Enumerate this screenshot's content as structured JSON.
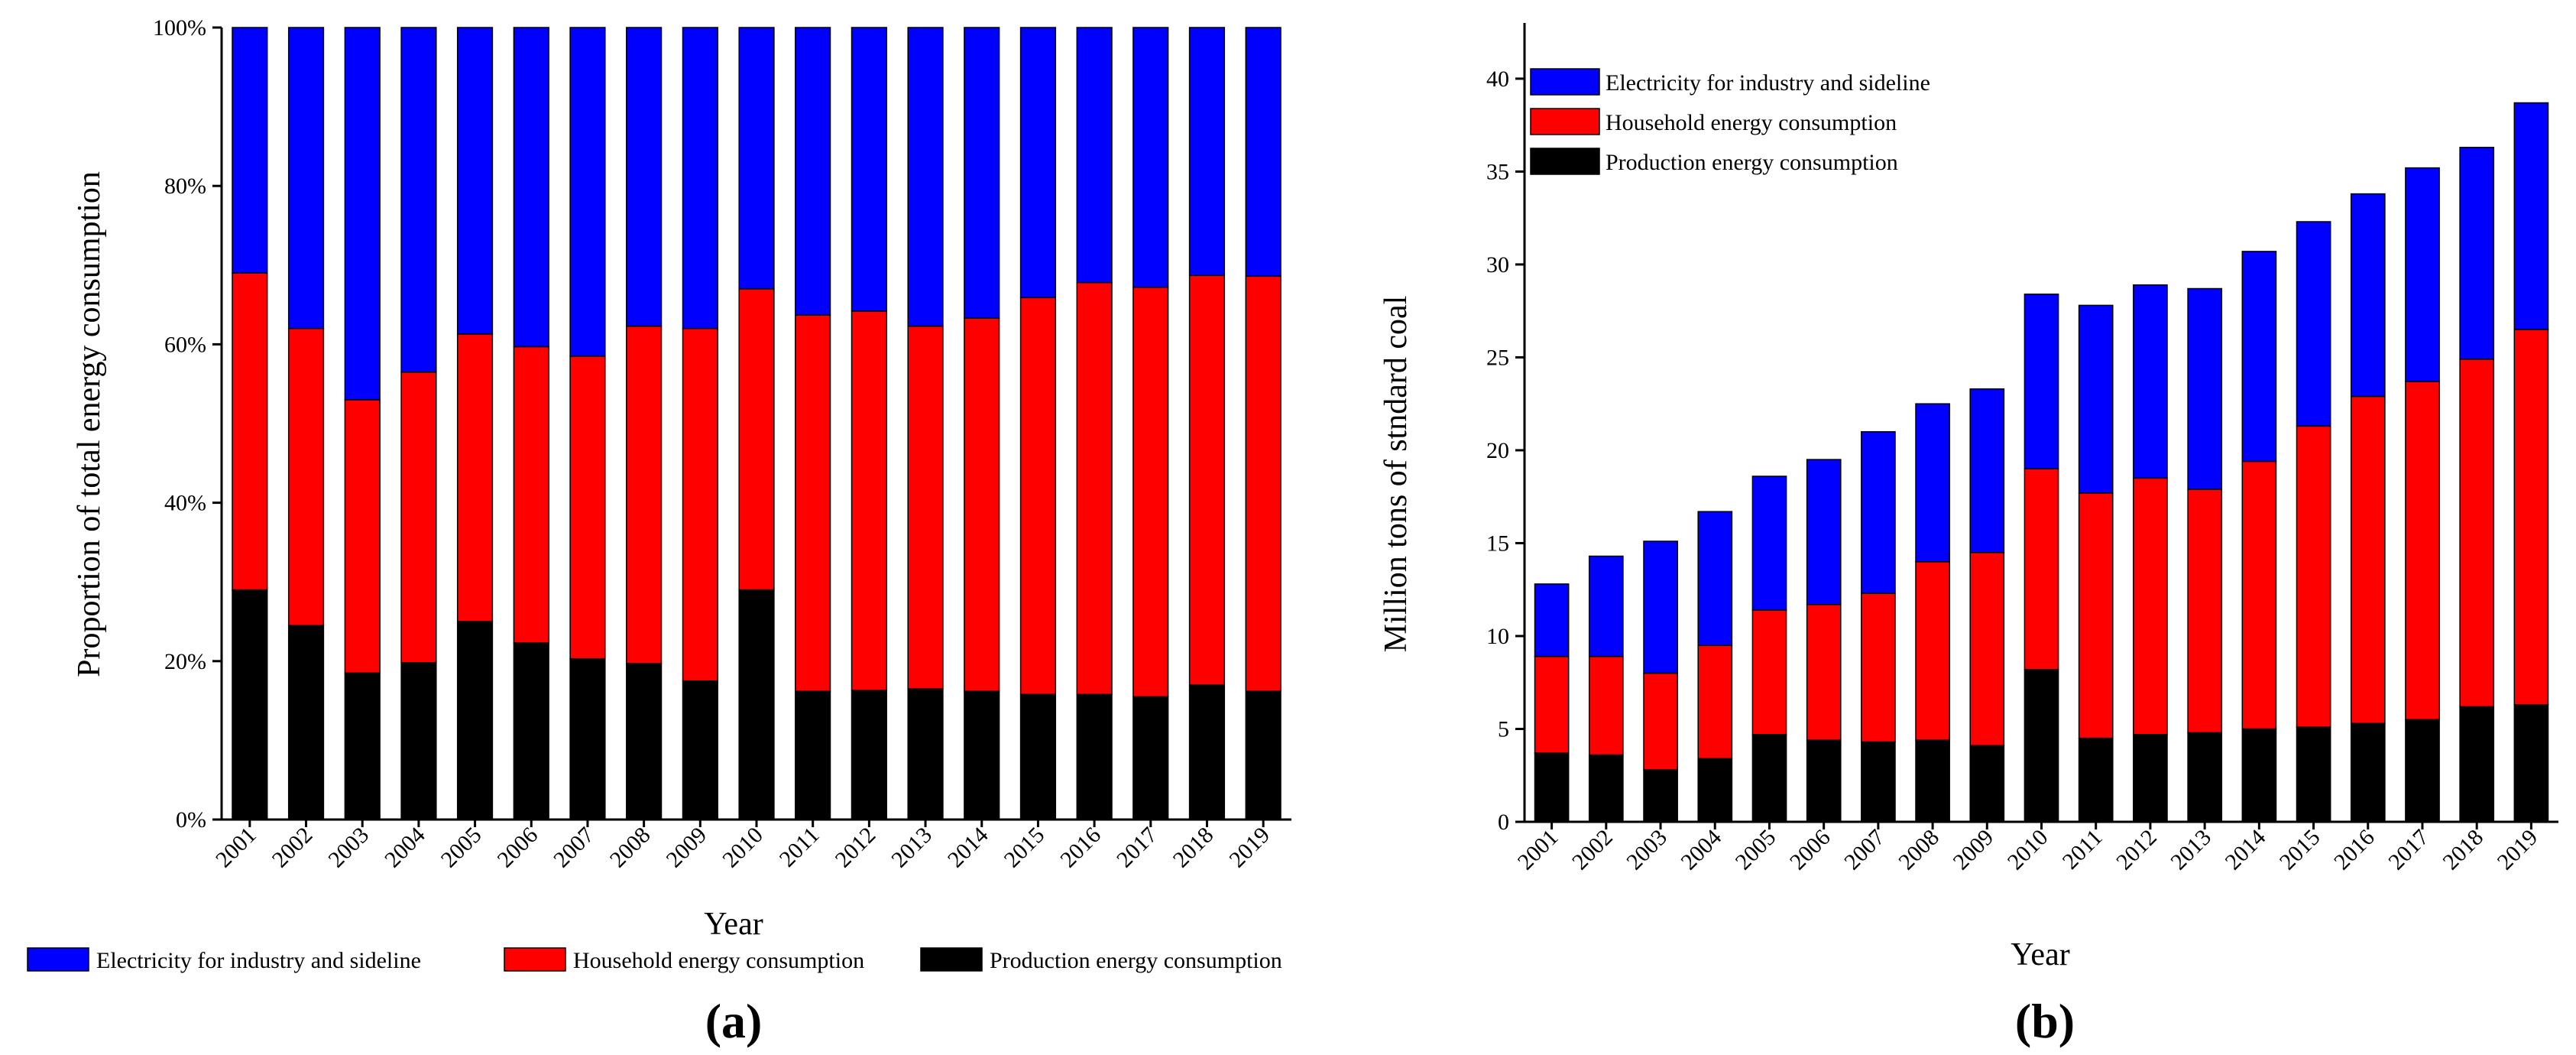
{
  "chart_data": [
    {
      "panel_label": "(a)",
      "type": "bar",
      "stacked": true,
      "normalized": true,
      "categories": [
        "2001",
        "2002",
        "2003",
        "2004",
        "2005",
        "2006",
        "2007",
        "2008",
        "2009",
        "2010",
        "2011",
        "2012",
        "2013",
        "2014",
        "2015",
        "2016",
        "2017",
        "2018",
        "2019"
      ],
      "series": [
        {
          "name": "Production energy consumption",
          "color": "#000000",
          "values": [
            29,
            24.5,
            18.5,
            19.8,
            25,
            22.3,
            20.3,
            19.7,
            17.5,
            29,
            16.2,
            16.3,
            16.5,
            16.2,
            15.8,
            15.8,
            15.5,
            17,
            16.2
          ]
        },
        {
          "name": "Household energy consumption",
          "color": "#ff0000",
          "values": [
            40,
            37.5,
            34.5,
            36.7,
            36.3,
            37.4,
            38.2,
            42.6,
            44.5,
            38,
            47.5,
            47.9,
            45.8,
            47.1,
            50.1,
            52,
            51.7,
            51.7,
            52.4
          ]
        },
        {
          "name": "Electricity for industry and sideline",
          "color": "#0000ff",
          "values": [
            31,
            38,
            47,
            43.5,
            38.7,
            40.3,
            41.5,
            37.7,
            38,
            33,
            36.3,
            35.8,
            37.7,
            36.7,
            34.1,
            32.2,
            32.8,
            31.3,
            31.4
          ]
        }
      ],
      "ylabel": "Proportion of total energy consumption",
      "xlabel": "Year",
      "ylim": [
        0,
        100
      ],
      "yticks": [
        0,
        20,
        40,
        60,
        80,
        100
      ],
      "ytick_labels": [
        "0%",
        "20%",
        "40%",
        "60%",
        "80%",
        "100%"
      ],
      "legend_position": "bottom",
      "legend_labels": [
        "Electricity for industry and sideline",
        "Household energy consumption",
        "Production energy consumption"
      ]
    },
    {
      "panel_label": "(b)",
      "type": "bar",
      "stacked": true,
      "normalized": false,
      "categories": [
        "2001",
        "2002",
        "2003",
        "2004",
        "2005",
        "2006",
        "2007",
        "2008",
        "2009",
        "2010",
        "2011",
        "2012",
        "2013",
        "2014",
        "2015",
        "2016",
        "2017",
        "2018",
        "2019"
      ],
      "series": [
        {
          "name": "Production energy consumption",
          "color": "#000000",
          "values": [
            3.7,
            3.6,
            2.8,
            3.4,
            4.7,
            4.4,
            4.3,
            4.4,
            4.1,
            8.2,
            4.5,
            4.7,
            4.8,
            5,
            5.1,
            5.3,
            5.5,
            6.2,
            6.3
          ]
        },
        {
          "name": "Household energy consumption",
          "color": "#ff0000",
          "values": [
            5.2,
            5.3,
            5.2,
            6.1,
            6.7,
            7.3,
            8,
            9.6,
            10.4,
            10.8,
            13.2,
            13.8,
            13.1,
            14.4,
            16.2,
            17.6,
            18.2,
            18.7,
            20.2
          ]
        },
        {
          "name": "Electricity for industry and sideline",
          "color": "#0000ff",
          "values": [
            3.9,
            5.4,
            7.1,
            7.2,
            7.2,
            7.8,
            8.7,
            8.5,
            8.8,
            9.4,
            10.1,
            10.4,
            10.8,
            11.3,
            11,
            10.9,
            11.5,
            11.4,
            12.2
          ]
        }
      ],
      "ylabel": "Million tons of stndard coal",
      "xlabel": "Year",
      "ylim": [
        0,
        43
      ],
      "yticks": [
        0,
        5,
        10,
        15,
        20,
        25,
        30,
        35,
        40
      ],
      "ytick_labels": [
        "0",
        "5",
        "10",
        "15",
        "20",
        "25",
        "30",
        "35",
        "40"
      ],
      "legend_position": "top-left",
      "legend_labels": [
        "Electricity for industry and sideline",
        "Household energy consumption",
        "Production energy consumption"
      ]
    }
  ]
}
